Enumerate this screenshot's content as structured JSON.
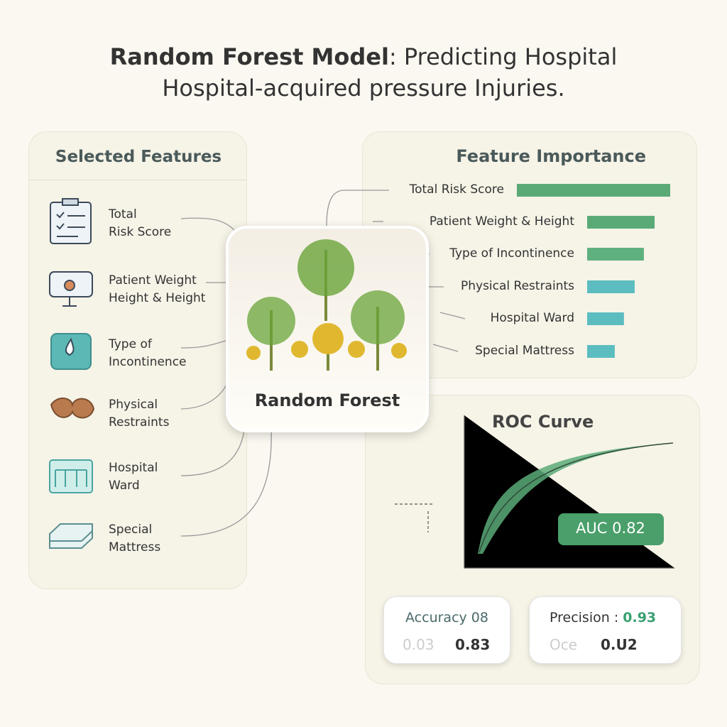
{
  "title": {
    "bold": "Random Forest Model",
    "rest": ": Predicting Hospital",
    "line2": "Hospital-acquired pressure Injuries."
  },
  "selected_features": {
    "heading": "Selected Features",
    "items": [
      [
        "Total",
        "Risk Score"
      ],
      [
        "Patient Weight",
        "Height & Height"
      ],
      [
        "Type of",
        "Incontinence"
      ],
      [
        "Physical",
        "Restraints"
      ],
      [
        "Hospital",
        "Ward"
      ],
      [
        "Special",
        "Mattress"
      ]
    ]
  },
  "center": {
    "label": "Random Forest"
  },
  "feature_importance": {
    "heading": "Feature Importance",
    "categories": [
      "Total Risk Score",
      "Patient Weight & Height",
      "Type of Incontinence",
      "Physical Restraints",
      "Hospital Ward",
      "Special Mattress"
    ],
    "values": [
      1.0,
      0.44,
      0.37,
      0.31,
      0.24,
      0.18
    ],
    "colors": [
      "#5aaa78",
      "#5aaa78",
      "#5fb07f",
      "#5bbdbf",
      "#5bbdbf",
      "#5bbdbf"
    ]
  },
  "roc": {
    "heading": "ROC Curve",
    "auc_label": "AUC",
    "auc_value": "0.82"
  },
  "metrics": [
    {
      "label": "Accuracy 08",
      "faded": "0.03",
      "value": "0.83"
    },
    {
      "label": "Precision :",
      "highlight": "0.93",
      "faded": "Oce",
      "value": "0.U2"
    }
  ]
}
